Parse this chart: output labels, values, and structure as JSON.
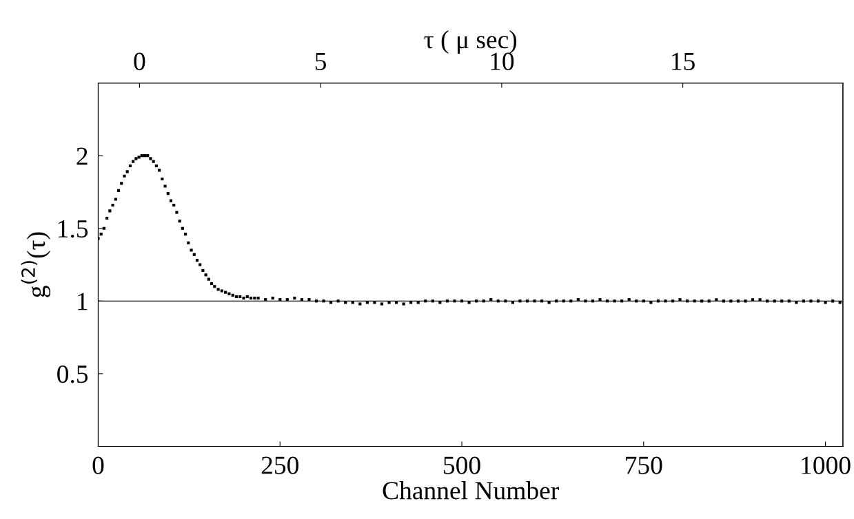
{
  "chart_data": {
    "type": "scatter",
    "xlabel": "Channel Number",
    "ylabel": "g$^{(2)}$(τ)",
    "x2label": "τ ( μ sec)",
    "xlim": [
      0,
      1024
    ],
    "xticks": [
      0,
      250,
      500,
      750,
      1000
    ],
    "x2lim": [
      -1.14,
      19.42
    ],
    "x2ticks": [
      0,
      5,
      10,
      15
    ],
    "ylim": [
      0,
      2.5
    ],
    "yticks": [
      0.5,
      1,
      1.5,
      2
    ],
    "marker": "square",
    "ref_lines": [
      {
        "axis": "y",
        "value": 1,
        "color": "#000000",
        "line_style": "solid"
      }
    ],
    "series": [
      {
        "color": "#000000",
        "x": [
          0,
          4,
          8,
          12,
          16,
          20,
          24,
          28,
          32,
          36,
          40,
          44,
          48,
          52,
          56,
          60,
          64,
          68,
          72,
          76,
          80,
          84,
          88,
          92,
          96,
          100,
          104,
          108,
          112,
          116,
          120,
          124,
          128,
          132,
          136,
          140,
          144,
          148,
          152,
          156,
          160,
          165,
          170,
          175,
          180,
          185,
          190,
          195,
          200,
          205,
          210,
          215,
          220,
          230,
          240,
          250,
          260,
          270,
          280,
          290,
          300,
          310,
          320,
          330,
          340,
          350,
          360,
          370,
          380,
          390,
          400,
          410,
          420,
          430,
          440,
          450,
          460,
          470,
          480,
          490,
          500,
          510,
          520,
          530,
          540,
          550,
          560,
          570,
          580,
          590,
          600,
          610,
          620,
          630,
          640,
          650,
          660,
          670,
          680,
          690,
          700,
          710,
          720,
          730,
          740,
          750,
          760,
          770,
          780,
          790,
          800,
          810,
          820,
          830,
          840,
          850,
          860,
          870,
          880,
          890,
          900,
          910,
          920,
          930,
          940,
          950,
          960,
          970,
          980,
          990,
          1000,
          1010,
          1020
        ],
        "values": [
          1.43,
          1.46,
          1.5,
          1.57,
          1.62,
          1.66,
          1.7,
          1.76,
          1.81,
          1.86,
          1.89,
          1.93,
          1.96,
          1.98,
          1.99,
          2.0,
          2.0,
          2.0,
          1.98,
          1.96,
          1.93,
          1.9,
          1.84,
          1.79,
          1.74,
          1.69,
          1.66,
          1.61,
          1.55,
          1.5,
          1.46,
          1.4,
          1.35,
          1.32,
          1.28,
          1.25,
          1.21,
          1.18,
          1.15,
          1.12,
          1.1,
          1.08,
          1.07,
          1.06,
          1.05,
          1.04,
          1.03,
          1.03,
          1.02,
          1.03,
          1.02,
          1.02,
          1.02,
          1.01,
          1.02,
          1.01,
          1.01,
          1.02,
          1.01,
          1.01,
          1.0,
          1.0,
          0.99,
          1.0,
          0.99,
          0.99,
          0.98,
          0.99,
          0.99,
          0.98,
          0.99,
          0.99,
          0.98,
          0.99,
          0.99,
          1.0,
          1.0,
          0.99,
          1.0,
          1.0,
          1.0,
          0.99,
          1.0,
          1.0,
          1.01,
          1.0,
          1.0,
          0.99,
          1.0,
          1.0,
          1.0,
          1.0,
          0.99,
          1.0,
          1.0,
          1.0,
          1.01,
          1.0,
          1.0,
          1.01,
          1.0,
          1.0,
          1.0,
          1.01,
          1.0,
          1.0,
          0.99,
          1.0,
          1.0,
          1.0,
          1.01,
          1.0,
          1.0,
          1.0,
          1.0,
          1.01,
          1.0,
          1.0,
          1.0,
          1.0,
          1.01,
          1.01,
          1.0,
          1.0,
          1.0,
          1.0,
          0.99,
          1.0,
          1.0,
          1.0,
          0.99,
          1.0,
          0.99
        ]
      }
    ]
  }
}
